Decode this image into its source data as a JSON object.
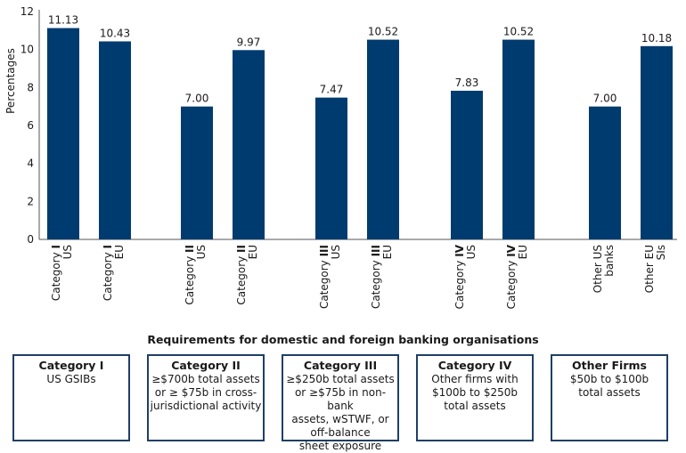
{
  "chart_data": {
    "type": "bar",
    "ylabel": "Percentages",
    "ylim": [
      0,
      12
    ],
    "yticks": [
      0,
      2,
      4,
      6,
      8,
      10,
      12
    ],
    "bar_color": "#003b6f",
    "groups": [
      {
        "bars": [
          {
            "label_prefix": "Category ",
            "label_bold": "I",
            "sublabel": "US",
            "value": 11.13,
            "value_label": "11.13"
          },
          {
            "label_prefix": "Category ",
            "label_bold": "I",
            "sublabel": "EU",
            "value": 10.43,
            "value_label": "10.43"
          }
        ]
      },
      {
        "bars": [
          {
            "label_prefix": "Category ",
            "label_bold": "II",
            "sublabel": "US",
            "value": 7.0,
            "value_label": "7.00"
          },
          {
            "label_prefix": "Category ",
            "label_bold": "II",
            "sublabel": "EU",
            "value": 9.97,
            "value_label": "9.97"
          }
        ]
      },
      {
        "bars": [
          {
            "label_prefix": "Category ",
            "label_bold": "III",
            "sublabel": "US",
            "value": 7.47,
            "value_label": "7.47"
          },
          {
            "label_prefix": "Category ",
            "label_bold": "III",
            "sublabel": "EU",
            "value": 10.52,
            "value_label": "10.52"
          }
        ]
      },
      {
        "bars": [
          {
            "label_prefix": "Category ",
            "label_bold": "IV",
            "sublabel": "US",
            "value": 7.83,
            "value_label": "7.83"
          },
          {
            "label_prefix": "Category ",
            "label_bold": "IV",
            "sublabel": "EU",
            "value": 10.52,
            "value_label": "10.52"
          }
        ]
      },
      {
        "bars": [
          {
            "label_prefix": "Other US",
            "label_bold": "",
            "sublabel": "banks",
            "value": 7.0,
            "value_label": "7.00"
          },
          {
            "label_prefix": "Other EU",
            "label_bold": "",
            "sublabel": "SIs",
            "value": 10.18,
            "value_label": "10.18"
          }
        ]
      }
    ]
  },
  "requirements": {
    "title": "Requirements for domestic and foreign banking organisations",
    "boxes": [
      {
        "title": "Category I",
        "lines": [
          "US GSIBs"
        ]
      },
      {
        "title": "Category II",
        "lines": [
          "≥$700b total assets",
          "or ≥ $75b in cross-",
          "jurisdictional activity"
        ]
      },
      {
        "title": "Category III",
        "lines": [
          "≥$250b total assets",
          "or ≥$75b in non-bank",
          "assets, wSTWF, or",
          "off-balance",
          "sheet exposure"
        ]
      },
      {
        "title": "Category IV",
        "lines": [
          "Other firms with",
          "$100b to $250b",
          "total assets"
        ]
      },
      {
        "title": "Other Firms",
        "lines": [
          "$50b to $100b",
          "total assets"
        ]
      }
    ]
  }
}
